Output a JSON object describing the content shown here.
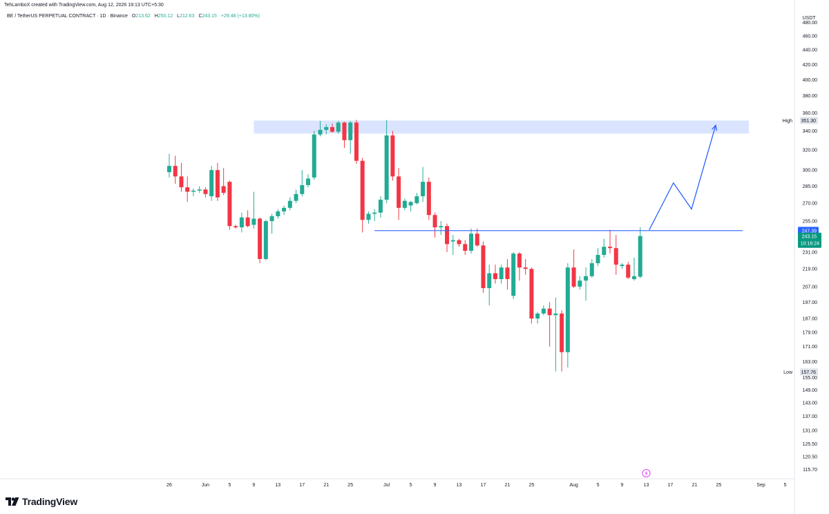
{
  "header": {
    "credit": "TehLamboX created with TradingView.com, Aug 12, 2026 19:13 UTC+5:30",
    "symbol_title": "BE / TetherUS PERPETUAL CONTRACT · 1D · Binance",
    "open_label": "O",
    "open": "213.62",
    "high_label": "H",
    "high": "250.12",
    "low_label": "L",
    "low": "212.63",
    "close_label": "C",
    "close": "243.15",
    "change": "+29.48 (+13.80%)"
  },
  "brand": {
    "name": "TradingView",
    "logo_icon": "tradingview-logo-icon"
  },
  "colors": {
    "up": "#22ab94",
    "down": "#f23645",
    "line": "#2962ff",
    "zone": "#dbe4ff",
    "last_tag": "#089981",
    "marker_tag": "#2962ff"
  },
  "chart_data": {
    "type": "candlestick",
    "currency": "USDT",
    "scale": "log",
    "ylim": [
      113,
      500
    ],
    "y_ticks": [
      "480.00",
      "460.00",
      "440.00",
      "420.00",
      "400.00",
      "380.00",
      "360.00",
      "340.00",
      "320.00",
      "300.00",
      "285.00",
      "270.00",
      "255.00",
      "231.00",
      "219.00",
      "207.00",
      "197.00",
      "187.00",
      "179.00",
      "171.00",
      "163.00",
      "155.00",
      "149.00",
      "143.00",
      "137.00",
      "131.00",
      "125.50",
      "120.50",
      "115.70"
    ],
    "x_ticks": [
      {
        "label": "26",
        "day": 0
      },
      {
        "label": "Jun",
        "day": 6
      },
      {
        "label": "5",
        "day": 10
      },
      {
        "label": "9",
        "day": 14
      },
      {
        "label": "13",
        "day": 18
      },
      {
        "label": "17",
        "day": 22
      },
      {
        "label": "21",
        "day": 26
      },
      {
        "label": "25",
        "day": 30
      },
      {
        "label": "Jul",
        "day": 36
      },
      {
        "label": "5",
        "day": 40
      },
      {
        "label": "9",
        "day": 44
      },
      {
        "label": "13",
        "day": 48
      },
      {
        "label": "17",
        "day": 52
      },
      {
        "label": "21",
        "day": 56
      },
      {
        "label": "25",
        "day": 60
      },
      {
        "label": "Aug",
        "day": 67
      },
      {
        "label": "5",
        "day": 71
      },
      {
        "label": "9",
        "day": 75
      },
      {
        "label": "13",
        "day": 79
      },
      {
        "label": "17",
        "day": 83
      },
      {
        "label": "21",
        "day": 87
      },
      {
        "label": "25",
        "day": 91
      },
      {
        "label": "Sep",
        "day": 98
      },
      {
        "label": "5",
        "day": 102
      }
    ],
    "candles": [
      {
        "date": "May 26",
        "o": 298,
        "h": 316,
        "l": 293,
        "c": 304
      },
      {
        "date": "May 27",
        "o": 304,
        "h": 314,
        "l": 287,
        "c": 294
      },
      {
        "date": "May 28",
        "o": 294,
        "h": 307,
        "l": 280,
        "c": 284
      },
      {
        "date": "May 29",
        "o": 284,
        "h": 294,
        "l": 271,
        "c": 280
      },
      {
        "date": "May 30",
        "o": 280,
        "h": 283,
        "l": 276,
        "c": 281
      },
      {
        "date": "May 31",
        "o": 281,
        "h": 285,
        "l": 279,
        "c": 282
      },
      {
        "date": "Jun 1",
        "o": 282,
        "h": 284,
        "l": 275,
        "c": 278
      },
      {
        "date": "Jun 2",
        "o": 276,
        "h": 304,
        "l": 272,
        "c": 300
      },
      {
        "date": "Jun 3",
        "o": 300,
        "h": 307,
        "l": 272,
        "c": 275
      },
      {
        "date": "Jun 4",
        "o": 285,
        "h": 302,
        "l": 277,
        "c": 279
      },
      {
        "date": "Jun 5",
        "o": 289,
        "h": 290,
        "l": 248,
        "c": 251
      },
      {
        "date": "Jun 6",
        "o": 251,
        "h": 252,
        "l": 249,
        "c": 250
      },
      {
        "date": "Jun 7",
        "o": 250,
        "h": 262,
        "l": 246,
        "c": 258
      },
      {
        "date": "Jun 8",
        "o": 258,
        "h": 264,
        "l": 250,
        "c": 251
      },
      {
        "date": "Jun 9",
        "o": 252,
        "h": 280,
        "l": 249,
        "c": 257
      },
      {
        "date": "Jun 10",
        "o": 257,
        "h": 258,
        "l": 223,
        "c": 226
      },
      {
        "date": "Jun 11",
        "o": 226,
        "h": 256,
        "l": 225,
        "c": 255
      },
      {
        "date": "Jun 12",
        "o": 255,
        "h": 261,
        "l": 245,
        "c": 259
      },
      {
        "date": "Jun 13",
        "o": 259,
        "h": 265,
        "l": 257,
        "c": 263
      },
      {
        "date": "Jun 14",
        "o": 263,
        "h": 268,
        "l": 260,
        "c": 266
      },
      {
        "date": "Jun 15",
        "o": 266,
        "h": 275,
        "l": 264,
        "c": 272
      },
      {
        "date": "Jun 16",
        "o": 272,
        "h": 282,
        "l": 270,
        "c": 278
      },
      {
        "date": "Jun 17",
        "o": 278,
        "h": 300,
        "l": 276,
        "c": 286
      },
      {
        "date": "Jun 18",
        "o": 286,
        "h": 296,
        "l": 284,
        "c": 292
      },
      {
        "date": "Jun 19",
        "o": 293,
        "h": 340,
        "l": 291,
        "c": 336
      },
      {
        "date": "Jun 20",
        "o": 336,
        "h": 351,
        "l": 334,
        "c": 341
      },
      {
        "date": "Jun 21",
        "o": 341,
        "h": 347,
        "l": 336,
        "c": 344
      },
      {
        "date": "Jun 22",
        "o": 344,
        "h": 348,
        "l": 338,
        "c": 339
      },
      {
        "date": "Jun 23",
        "o": 339,
        "h": 351,
        "l": 337,
        "c": 349
      },
      {
        "date": "Jun 24",
        "o": 349,
        "h": 350,
        "l": 322,
        "c": 330
      },
      {
        "date": "Jun 25",
        "o": 330,
        "h": 351,
        "l": 316,
        "c": 349
      },
      {
        "date": "Jun 26",
        "o": 349,
        "h": 352,
        "l": 306,
        "c": 309
      },
      {
        "date": "Jun 27",
        "o": 309,
        "h": 312,
        "l": 246,
        "c": 256
      },
      {
        "date": "Jun 28",
        "o": 256,
        "h": 263,
        "l": 253,
        "c": 261
      },
      {
        "date": "Jun 29",
        "o": 261,
        "h": 265,
        "l": 255,
        "c": 262
      },
      {
        "date": "Jun 30",
        "o": 262,
        "h": 276,
        "l": 258,
        "c": 273
      },
      {
        "date": "Jul 1",
        "o": 273,
        "h": 352,
        "l": 270,
        "c": 335
      },
      {
        "date": "Jul 2",
        "o": 335,
        "h": 340,
        "l": 290,
        "c": 294
      },
      {
        "date": "Jul 3",
        "o": 294,
        "h": 302,
        "l": 256,
        "c": 266
      },
      {
        "date": "Jul 4",
        "o": 266,
        "h": 274,
        "l": 264,
        "c": 272
      },
      {
        "date": "Jul 5",
        "o": 268,
        "h": 272,
        "l": 263,
        "c": 271
      },
      {
        "date": "Jul 6",
        "o": 270,
        "h": 279,
        "l": 269,
        "c": 276
      },
      {
        "date": "Jul 7",
        "o": 276,
        "h": 303,
        "l": 271,
        "c": 289
      },
      {
        "date": "Jul 8",
        "o": 289,
        "h": 293,
        "l": 256,
        "c": 260
      },
      {
        "date": "Jul 9",
        "o": 260,
        "h": 262,
        "l": 242,
        "c": 250
      },
      {
        "date": "Jul 10",
        "o": 250,
        "h": 255,
        "l": 244,
        "c": 251
      },
      {
        "date": "Jul 11",
        "o": 251,
        "h": 253,
        "l": 231,
        "c": 237
      },
      {
        "date": "Jul 12",
        "o": 239,
        "h": 244,
        "l": 229,
        "c": 240
      },
      {
        "date": "Jul 13",
        "o": 240,
        "h": 241,
        "l": 235,
        "c": 237
      },
      {
        "date": "Jul 14",
        "o": 237,
        "h": 240,
        "l": 229,
        "c": 232
      },
      {
        "date": "Jul 15",
        "o": 232,
        "h": 249,
        "l": 230,
        "c": 245
      },
      {
        "date": "Jul 16",
        "o": 245,
        "h": 249,
        "l": 235,
        "c": 236
      },
      {
        "date": "Jul 17",
        "o": 236,
        "h": 239,
        "l": 203,
        "c": 206
      },
      {
        "date": "Jul 18",
        "o": 206,
        "h": 222,
        "l": 195,
        "c": 216
      },
      {
        "date": "Jul 19",
        "o": 216,
        "h": 222,
        "l": 209,
        "c": 212
      },
      {
        "date": "Jul 20",
        "o": 212,
        "h": 222,
        "l": 209,
        "c": 220
      },
      {
        "date": "Jul 21",
        "o": 220,
        "h": 226,
        "l": 205,
        "c": 212
      },
      {
        "date": "Jul 22",
        "o": 201,
        "h": 231,
        "l": 199,
        "c": 230
      },
      {
        "date": "Jul 23",
        "o": 230,
        "h": 231,
        "l": 211,
        "c": 220
      },
      {
        "date": "Jul 24",
        "o": 220,
        "h": 226,
        "l": 215,
        "c": 219
      },
      {
        "date": "Jul 25",
        "o": 219,
        "h": 220,
        "l": 184,
        "c": 187
      },
      {
        "date": "Jul 26",
        "o": 187,
        "h": 191,
        "l": 184,
        "c": 190
      },
      {
        "date": "Jul 27",
        "o": 190,
        "h": 195,
        "l": 189,
        "c": 193
      },
      {
        "date": "Jul 28",
        "o": 193,
        "h": 197,
        "l": 171,
        "c": 189
      },
      {
        "date": "Jul 29",
        "o": 189,
        "h": 200,
        "l": 158,
        "c": 190
      },
      {
        "date": "Jul 30",
        "o": 190,
        "h": 192,
        "l": 158,
        "c": 168
      },
      {
        "date": "Jul 31",
        "o": 168,
        "h": 223,
        "l": 160,
        "c": 220
      },
      {
        "date": "Aug 1",
        "o": 220,
        "h": 233,
        "l": 206,
        "c": 207
      },
      {
        "date": "Aug 2",
        "o": 207,
        "h": 214,
        "l": 205,
        "c": 211
      },
      {
        "date": "Aug 3",
        "o": 211,
        "h": 220,
        "l": 198,
        "c": 214
      },
      {
        "date": "Aug 4",
        "o": 214,
        "h": 226,
        "l": 213,
        "c": 223
      },
      {
        "date": "Aug 5",
        "o": 223,
        "h": 234,
        "l": 221,
        "c": 229
      },
      {
        "date": "Aug 6",
        "o": 229,
        "h": 241,
        "l": 227,
        "c": 235
      },
      {
        "date": "Aug 7",
        "o": 235,
        "h": 248,
        "l": 230,
        "c": 234
      },
      {
        "date": "Aug 8",
        "o": 234,
        "h": 244,
        "l": 215,
        "c": 222
      },
      {
        "date": "Aug 9",
        "o": 221,
        "h": 223,
        "l": 219,
        "c": 222
      },
      {
        "date": "Aug 10",
        "o": 222,
        "h": 224,
        "l": 212,
        "c": 213
      },
      {
        "date": "Aug 11",
        "o": 212,
        "h": 227,
        "l": 211,
        "c": 214
      },
      {
        "date": "Aug 12",
        "o": 213.62,
        "h": 250.12,
        "l": 212.63,
        "c": 243.15
      }
    ],
    "zone": {
      "day_start": 14,
      "day_end": 96,
      "price_top": 351.3,
      "price_bottom": 337
    },
    "support_line": {
      "day_start": 34,
      "day_end": 95,
      "price": 247.39
    },
    "projection": [
      {
        "day": 79.5,
        "price": 248
      },
      {
        "day": 83.5,
        "price": 288
      },
      {
        "day": 86.5,
        "price": 265
      },
      {
        "day": 90.5,
        "price": 346
      }
    ],
    "markers": [
      {
        "label": "High",
        "value": "351.30",
        "price": 351.3,
        "kind": "plain"
      },
      {
        "label": "",
        "value": "247.39",
        "price": 247.39,
        "kind": "blue"
      },
      {
        "label": "",
        "value": "243.15",
        "sub": "10:16:24",
        "price": 243.15,
        "kind": "green"
      },
      {
        "label": "Low",
        "value": "157.76",
        "price": 157.76,
        "kind": "plain"
      }
    ],
    "event_icon": "lightning-event-icon",
    "event_day": 79
  }
}
